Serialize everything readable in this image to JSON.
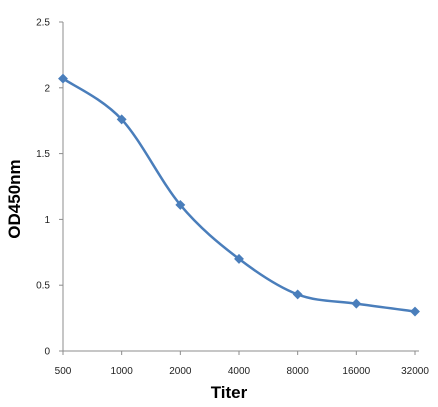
{
  "chart_data": {
    "type": "line",
    "title": "",
    "xlabel": "Titer",
    "ylabel": "OD450nm",
    "categories": [
      "500",
      "1000",
      "2000",
      "4000",
      "8000",
      "16000",
      "32000"
    ],
    "series": [
      {
        "values": [
          2.07,
          1.76,
          1.11,
          0.7,
          0.43,
          0.36,
          0.3
        ]
      }
    ],
    "ylim": [
      0,
      2.5
    ],
    "yticks": [
      "0",
      "0.5",
      "1",
      "1.5",
      "2",
      "2.5"
    ],
    "grid": false,
    "legend": "none",
    "line_color": "#4a7ebb",
    "marker": "diamond",
    "smooth": true
  }
}
